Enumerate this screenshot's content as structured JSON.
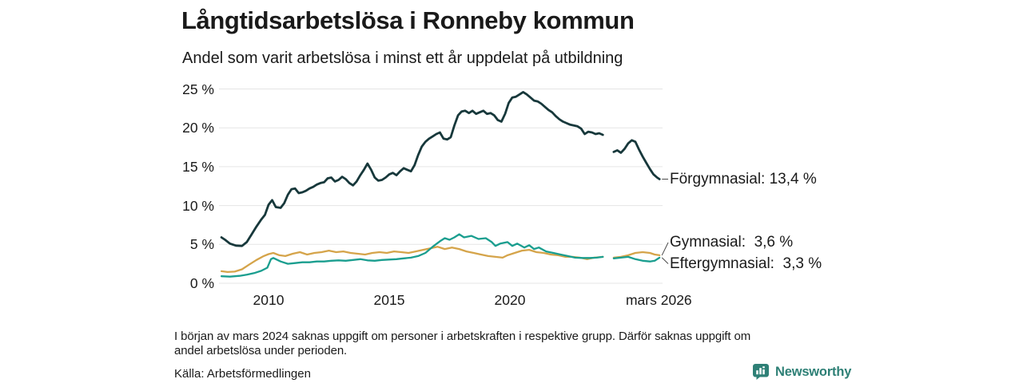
{
  "header": {
    "title": "Långtidsarbetslösa i Ronneby kommun",
    "subtitle": "Andel som varit arbetslösa i minst ett år uppdelat på utbildning"
  },
  "chart_data": {
    "type": "line",
    "title": "Långtidsarbetslösa i Ronneby kommun",
    "subtitle": "Andel som varit arbetslösa i minst ett år uppdelat på utbildning",
    "grid": true,
    "x_axis": {
      "range": [
        2008.0,
        2026.3
      ],
      "ticks": [
        {
          "label": "2010",
          "year": 2010
        },
        {
          "label": "2015",
          "year": 2015
        },
        {
          "label": "2020",
          "year": 2020
        },
        {
          "label": "mars 2026",
          "year": 2026.17
        }
      ]
    },
    "y_axis": {
      "range": [
        0,
        25
      ],
      "unit": "%",
      "ticks": [
        {
          "label": "25 %",
          "value": 25
        },
        {
          "label": "20 %",
          "value": 20
        },
        {
          "label": "15 %",
          "value": 15
        },
        {
          "label": "10 %",
          "value": 10
        },
        {
          "label": "5 %",
          "value": 5
        },
        {
          "label": "0 %",
          "value": 0
        }
      ]
    },
    "gap_note": "data missing around mars 2024",
    "series": [
      {
        "name": "Förgymnasial",
        "color": "#17383b",
        "end_value": "13,4 %",
        "end_label": "Förgymnasial: 13,4 %",
        "segments": [
          [
            [
              2008.05,
              5.9
            ],
            [
              2008.2,
              5.6
            ],
            [
              2008.4,
              5.1
            ],
            [
              2008.65,
              4.85
            ],
            [
              2008.9,
              4.8
            ],
            [
              2009.1,
              5.3
            ],
            [
              2009.3,
              6.3
            ],
            [
              2009.5,
              7.3
            ],
            [
              2009.7,
              8.2
            ],
            [
              2009.85,
              8.8
            ],
            [
              2010.0,
              10.1
            ],
            [
              2010.15,
              10.7
            ],
            [
              2010.3,
              9.8
            ],
            [
              2010.5,
              9.7
            ],
            [
              2010.65,
              10.3
            ],
            [
              2010.8,
              11.4
            ],
            [
              2010.95,
              12.1
            ],
            [
              2011.1,
              12.2
            ],
            [
              2011.25,
              11.6
            ],
            [
              2011.4,
              11.7
            ],
            [
              2011.55,
              11.9
            ],
            [
              2011.7,
              12.2
            ],
            [
              2011.85,
              12.4
            ],
            [
              2012.0,
              12.7
            ],
            [
              2012.15,
              12.9
            ],
            [
              2012.3,
              13.0
            ],
            [
              2012.45,
              13.5
            ],
            [
              2012.6,
              13.6
            ],
            [
              2012.75,
              13.1
            ],
            [
              2012.9,
              13.3
            ],
            [
              2013.05,
              13.7
            ],
            [
              2013.2,
              13.4
            ],
            [
              2013.35,
              12.9
            ],
            [
              2013.5,
              12.6
            ],
            [
              2013.65,
              13.1
            ],
            [
              2013.8,
              13.9
            ],
            [
              2013.95,
              14.6
            ],
            [
              2014.1,
              15.4
            ],
            [
              2014.25,
              14.6
            ],
            [
              2014.4,
              13.6
            ],
            [
              2014.55,
              13.2
            ],
            [
              2014.7,
              13.3
            ],
            [
              2014.85,
              13.6
            ],
            [
              2015.0,
              14.0
            ],
            [
              2015.15,
              14.2
            ],
            [
              2015.3,
              13.9
            ],
            [
              2015.45,
              14.4
            ],
            [
              2015.6,
              14.8
            ],
            [
              2015.75,
              14.6
            ],
            [
              2015.9,
              14.4
            ],
            [
              2016.05,
              15.2
            ],
            [
              2016.2,
              16.5
            ],
            [
              2016.35,
              17.6
            ],
            [
              2016.5,
              18.2
            ],
            [
              2016.65,
              18.6
            ],
            [
              2016.8,
              18.9
            ],
            [
              2016.95,
              19.2
            ],
            [
              2017.1,
              19.4
            ],
            [
              2017.25,
              18.6
            ],
            [
              2017.4,
              18.5
            ],
            [
              2017.55,
              18.8
            ],
            [
              2017.7,
              20.3
            ],
            [
              2017.85,
              21.6
            ],
            [
              2018.0,
              22.1
            ],
            [
              2018.15,
              22.2
            ],
            [
              2018.3,
              21.9
            ],
            [
              2018.45,
              22.2
            ],
            [
              2018.6,
              21.8
            ],
            [
              2018.75,
              22.0
            ],
            [
              2018.9,
              22.2
            ],
            [
              2019.05,
              21.8
            ],
            [
              2019.2,
              21.9
            ],
            [
              2019.35,
              21.6
            ],
            [
              2019.5,
              21.0
            ],
            [
              2019.65,
              20.8
            ],
            [
              2019.8,
              21.8
            ],
            [
              2019.95,
              23.2
            ],
            [
              2020.1,
              23.9
            ],
            [
              2020.25,
              24.0
            ],
            [
              2020.4,
              24.3
            ],
            [
              2020.55,
              24.6
            ],
            [
              2020.7,
              24.3
            ],
            [
              2020.85,
              23.9
            ],
            [
              2021.0,
              23.5
            ],
            [
              2021.15,
              23.4
            ],
            [
              2021.3,
              23.1
            ],
            [
              2021.45,
              22.7
            ],
            [
              2021.6,
              22.3
            ],
            [
              2021.75,
              22.0
            ],
            [
              2021.9,
              21.5
            ],
            [
              2022.05,
              21.1
            ],
            [
              2022.2,
              20.8
            ],
            [
              2022.35,
              20.6
            ],
            [
              2022.5,
              20.4
            ],
            [
              2022.65,
              20.3
            ],
            [
              2022.8,
              20.2
            ],
            [
              2022.95,
              19.9
            ],
            [
              2023.1,
              19.2
            ],
            [
              2023.25,
              19.5
            ],
            [
              2023.4,
              19.4
            ],
            [
              2023.55,
              19.2
            ],
            [
              2023.7,
              19.3
            ],
            [
              2023.85,
              19.1
            ]
          ],
          [
            [
              2024.3,
              16.9
            ],
            [
              2024.45,
              17.1
            ],
            [
              2024.6,
              16.8
            ],
            [
              2024.75,
              17.3
            ],
            [
              2024.9,
              18.0
            ],
            [
              2025.05,
              18.4
            ],
            [
              2025.2,
              18.2
            ],
            [
              2025.35,
              17.2
            ],
            [
              2025.5,
              16.3
            ],
            [
              2025.65,
              15.5
            ],
            [
              2025.8,
              14.7
            ],
            [
              2025.95,
              14.0
            ],
            [
              2026.1,
              13.6
            ],
            [
              2026.2,
              13.4
            ]
          ]
        ]
      },
      {
        "name": "Gymnasial",
        "color": "#d5a44a",
        "end_value": "3,6 %",
        "end_label": "Gymnasial:  3,6 %",
        "segments": [
          [
            [
              2008.05,
              1.55
            ],
            [
              2008.3,
              1.45
            ],
            [
              2008.6,
              1.5
            ],
            [
              2008.9,
              1.8
            ],
            [
              2009.2,
              2.4
            ],
            [
              2009.5,
              3.0
            ],
            [
              2009.8,
              3.5
            ],
            [
              2010.0,
              3.75
            ],
            [
              2010.2,
              3.9
            ],
            [
              2010.45,
              3.6
            ],
            [
              2010.7,
              3.5
            ],
            [
              2011.0,
              3.8
            ],
            [
              2011.3,
              4.0
            ],
            [
              2011.6,
              3.7
            ],
            [
              2011.9,
              3.9
            ],
            [
              2012.2,
              4.0
            ],
            [
              2012.5,
              4.2
            ],
            [
              2012.8,
              4.0
            ],
            [
              2013.1,
              4.1
            ],
            [
              2013.4,
              3.9
            ],
            [
              2013.7,
              3.8
            ],
            [
              2014.0,
              3.7
            ],
            [
              2014.3,
              3.9
            ],
            [
              2014.6,
              4.0
            ],
            [
              2014.9,
              3.9
            ],
            [
              2015.2,
              4.1
            ],
            [
              2015.5,
              4.0
            ],
            [
              2015.8,
              3.9
            ],
            [
              2016.1,
              4.1
            ],
            [
              2016.4,
              4.3
            ],
            [
              2016.7,
              4.5
            ],
            [
              2017.0,
              4.7
            ],
            [
              2017.3,
              4.4
            ],
            [
              2017.6,
              4.6
            ],
            [
              2017.9,
              4.4
            ],
            [
              2018.2,
              4.1
            ],
            [
              2018.5,
              3.9
            ],
            [
              2018.8,
              3.7
            ],
            [
              2019.1,
              3.5
            ],
            [
              2019.4,
              3.4
            ],
            [
              2019.7,
              3.3
            ],
            [
              2019.9,
              3.6
            ],
            [
              2020.2,
              3.9
            ],
            [
              2020.5,
              4.2
            ],
            [
              2020.8,
              4.3
            ],
            [
              2021.1,
              4.0
            ],
            [
              2021.4,
              3.9
            ],
            [
              2021.7,
              3.7
            ],
            [
              2022.0,
              3.6
            ],
            [
              2022.3,
              3.4
            ],
            [
              2022.6,
              3.4
            ],
            [
              2022.9,
              3.3
            ],
            [
              2023.2,
              3.1
            ],
            [
              2023.5,
              3.3
            ],
            [
              2023.85,
              3.4
            ]
          ],
          [
            [
              2024.3,
              3.3
            ],
            [
              2024.6,
              3.4
            ],
            [
              2024.9,
              3.6
            ],
            [
              2025.2,
              3.9
            ],
            [
              2025.5,
              4.0
            ],
            [
              2025.8,
              3.9
            ],
            [
              2026.0,
              3.7
            ],
            [
              2026.2,
              3.6
            ]
          ]
        ]
      },
      {
        "name": "Eftergymnasial",
        "color": "#1a9e8f",
        "end_value": "3,3 %",
        "end_label": "Eftergymnasial:  3,3 %",
        "segments": [
          [
            [
              2008.05,
              0.9
            ],
            [
              2008.4,
              0.85
            ],
            [
              2008.8,
              0.95
            ],
            [
              2009.1,
              1.1
            ],
            [
              2009.4,
              1.3
            ],
            [
              2009.7,
              1.6
            ],
            [
              2009.95,
              2.0
            ],
            [
              2010.1,
              3.1
            ],
            [
              2010.2,
              3.25
            ],
            [
              2010.5,
              2.8
            ],
            [
              2010.8,
              2.5
            ],
            [
              2011.1,
              2.6
            ],
            [
              2011.4,
              2.7
            ],
            [
              2011.7,
              2.7
            ],
            [
              2012.0,
              2.8
            ],
            [
              2012.3,
              2.8
            ],
            [
              2012.6,
              2.9
            ],
            [
              2012.9,
              2.95
            ],
            [
              2013.2,
              2.9
            ],
            [
              2013.5,
              3.0
            ],
            [
              2013.8,
              3.1
            ],
            [
              2014.1,
              2.95
            ],
            [
              2014.4,
              2.9
            ],
            [
              2014.7,
              3.0
            ],
            [
              2015.0,
              3.05
            ],
            [
              2015.3,
              3.1
            ],
            [
              2015.6,
              3.2
            ],
            [
              2015.9,
              3.3
            ],
            [
              2016.2,
              3.5
            ],
            [
              2016.5,
              3.9
            ],
            [
              2016.8,
              4.7
            ],
            [
              2017.1,
              5.4
            ],
            [
              2017.3,
              5.8
            ],
            [
              2017.5,
              5.6
            ],
            [
              2017.7,
              5.9
            ],
            [
              2017.9,
              6.3
            ],
            [
              2018.1,
              5.9
            ],
            [
              2018.4,
              6.1
            ],
            [
              2018.7,
              5.7
            ],
            [
              2019.0,
              5.8
            ],
            [
              2019.25,
              5.3
            ],
            [
              2019.4,
              4.8
            ],
            [
              2019.6,
              5.1
            ],
            [
              2019.9,
              5.3
            ],
            [
              2020.1,
              4.8
            ],
            [
              2020.3,
              5.1
            ],
            [
              2020.6,
              4.6
            ],
            [
              2020.8,
              4.9
            ],
            [
              2021.0,
              4.4
            ],
            [
              2021.2,
              4.6
            ],
            [
              2021.5,
              4.1
            ],
            [
              2021.8,
              3.9
            ],
            [
              2022.1,
              3.7
            ],
            [
              2022.4,
              3.5
            ],
            [
              2022.7,
              3.3
            ],
            [
              2023.0,
              3.25
            ],
            [
              2023.3,
              3.25
            ],
            [
              2023.6,
              3.3
            ],
            [
              2023.85,
              3.4
            ]
          ],
          [
            [
              2024.3,
              3.2
            ],
            [
              2024.6,
              3.3
            ],
            [
              2024.9,
              3.4
            ],
            [
              2025.2,
              3.1
            ],
            [
              2025.5,
              2.9
            ],
            [
              2025.8,
              2.8
            ],
            [
              2026.0,
              2.9
            ],
            [
              2026.2,
              3.3
            ]
          ]
        ]
      }
    ],
    "colors": {
      "grid": "#e5e5e5",
      "text": "#1a1a1a",
      "leader": "#4a4a4a"
    }
  },
  "footer": {
    "note_line1": "I början av mars 2024 saknas uppgift om personer i arbetskraften i respektive grupp. Därför saknas uppgift om",
    "note_line2": "andel arbetslösa under perioden.",
    "source": "Källa: Arbetsförmedlingen"
  },
  "branding": {
    "name": "Newsworthy",
    "color": "#2e8076"
  }
}
